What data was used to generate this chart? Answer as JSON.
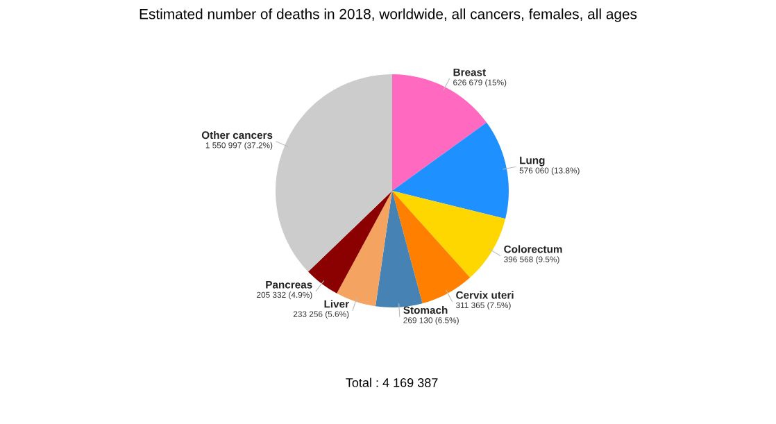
{
  "chart_data": {
    "type": "pie",
    "title": "Estimated number of deaths in 2018, worldwide, all cancers, females, all ages",
    "categories": [
      "Breast",
      "Lung",
      "Colorectum",
      "Cervix uteri",
      "Stomach",
      "Liver",
      "Pancreas",
      "Other cancers"
    ],
    "values": [
      626679,
      576060,
      396568,
      311365,
      269130,
      233256,
      205332,
      1550997
    ],
    "colors": [
      "#ff69c0",
      "#1e90ff",
      "#ffd700",
      "#ff7f00",
      "#4682b4",
      "#f4a460",
      "#8b0000",
      "#cccccc"
    ],
    "value_labels": [
      "626 679 (15%)",
      "576 060 (13.8%)",
      "396 568 (9.5%)",
      "311 365 (7.5%)",
      "269 130 (6.5%)",
      "233 256 (5.6%)",
      "205 332 (4.9%)",
      "1 550 997 (37.2%)"
    ],
    "annotations": [
      "Total : 4 169 387"
    ],
    "legend": false
  }
}
